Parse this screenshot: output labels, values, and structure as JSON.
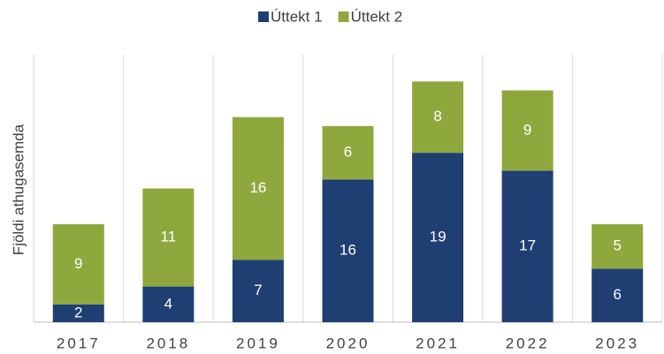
{
  "chart_data": {
    "type": "stacked_bar",
    "y_label": "Fjöldi athugasemda",
    "categories": [
      "2017",
      "2018",
      "2019",
      "2020",
      "2021",
      "2022",
      "2023"
    ],
    "series": [
      {
        "name": "Úttekt 1",
        "color": "#1f3f73",
        "values": [
          2,
          4,
          7,
          16,
          19,
          17,
          6
        ]
      },
      {
        "name": "Úttekt 2",
        "color": "#8ea83e",
        "values": [
          9,
          11,
          16,
          6,
          8,
          9,
          5
        ]
      }
    ],
    "ylim": [
      0,
      30
    ],
    "legend": "top"
  }
}
